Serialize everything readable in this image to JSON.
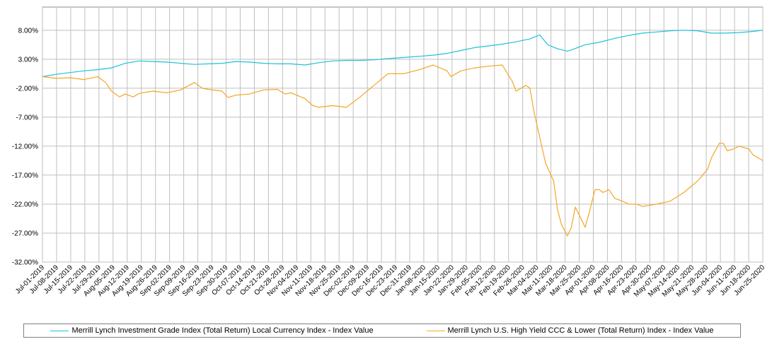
{
  "chart_data": {
    "type": "line",
    "title": "",
    "xlabel": "",
    "ylabel": "",
    "ylim": [
      -32,
      12
    ],
    "yticks": [
      8,
      3,
      -2,
      -7,
      -12,
      -17,
      -22,
      -27,
      -32
    ],
    "ytick_labels": [
      "8.00%",
      "3.00%",
      "-2.00%",
      "-7.00%",
      "-12.00%",
      "-17.00%",
      "-22.00%",
      "-27.00%",
      "-32.00%"
    ],
    "x_start": "2019-07-01",
    "x_end": "2020-06-30",
    "xtick_labels": [
      "Jul-01-2019",
      "Jul-08-2019",
      "Jul-15-2019",
      "Jul-22-2019",
      "Jul-29-2019",
      "Aug-05-2019",
      "Aug-12-2019",
      "Aug-19-2019",
      "Aug-26-2019",
      "Sep-02-2019",
      "Sep-09-2019",
      "Sep-16-2019",
      "Sep-23-2019",
      "Sep-30-2019",
      "Oct-07-2019",
      "Oct-14-2019",
      "Oct-21-2019",
      "Oct-28-2019",
      "Nov-04-2019",
      "Nov-11-2019",
      "Nov-18-2019",
      "Nov-25-2019",
      "Dec-02-2019",
      "Dec-09-2019",
      "Dec-16-2019",
      "Dec-23-2019",
      "Dec-31-2019",
      "Jan-08-2020",
      "Jan-15-2020",
      "Jan-22-2020",
      "Jan-29-2020",
      "Feb-05-2020",
      "Feb-12-2020",
      "Feb-19-2020",
      "Feb-26-2020",
      "Mar-04-2020",
      "Mar-11-2020",
      "Mar-18-2020",
      "Mar-25-2020",
      "Apr-01-2020",
      "Apr-08-2020",
      "Apr-16-2020",
      "Apr-23-2020",
      "Apr-30-2020",
      "May-07-2020",
      "May-14-2020",
      "May-21-2020",
      "May-28-2020",
      "Jun-04-2020",
      "Jun-11-2020",
      "Jun-18-2020",
      "Jun-25-2020"
    ],
    "grid": true,
    "legend_position": "bottom",
    "series": [
      {
        "name": "Merrill Lynch Investment Grade Index (Total Return) Local Currency Index - Index Value",
        "color": "#1fc1d6",
        "x": [
          "2019-07-01",
          "2019-07-08",
          "2019-07-15",
          "2019-07-22",
          "2019-07-29",
          "2019-08-05",
          "2019-08-12",
          "2019-08-19",
          "2019-08-26",
          "2019-09-02",
          "2019-09-09",
          "2019-09-16",
          "2019-09-23",
          "2019-09-30",
          "2019-10-07",
          "2019-10-14",
          "2019-10-21",
          "2019-10-28",
          "2019-11-04",
          "2019-11-11",
          "2019-11-18",
          "2019-11-25",
          "2019-12-02",
          "2019-12-09",
          "2019-12-16",
          "2019-12-23",
          "2019-12-31",
          "2020-01-08",
          "2020-01-15",
          "2020-01-22",
          "2020-01-29",
          "2020-02-05",
          "2020-02-12",
          "2020-02-19",
          "2020-02-26",
          "2020-03-04",
          "2020-03-09",
          "2020-03-13",
          "2020-03-18",
          "2020-03-23",
          "2020-03-25",
          "2020-04-01",
          "2020-04-08",
          "2020-04-16",
          "2020-04-23",
          "2020-04-30",
          "2020-05-07",
          "2020-05-14",
          "2020-05-21",
          "2020-05-28",
          "2020-06-04",
          "2020-06-11",
          "2020-06-18",
          "2020-06-25",
          "2020-06-30"
        ],
        "y": [
          0.0,
          0.4,
          0.7,
          1.0,
          1.2,
          1.5,
          2.3,
          2.7,
          2.6,
          2.5,
          2.3,
          2.1,
          2.2,
          2.3,
          2.6,
          2.5,
          2.3,
          2.2,
          2.2,
          2.0,
          2.4,
          2.7,
          2.8,
          2.8,
          2.9,
          3.1,
          3.3,
          3.5,
          3.7,
          4.0,
          4.5,
          5.0,
          5.3,
          5.6,
          6.0,
          6.5,
          7.2,
          5.5,
          4.8,
          4.4,
          4.6,
          5.5,
          5.9,
          6.6,
          7.1,
          7.5,
          7.7,
          7.9,
          8.0,
          7.9,
          7.5,
          7.5,
          7.6,
          7.8,
          8.0
        ]
      },
      {
        "name": "Merrill Lynch U.S. High Yield CCC & Lower (Total Return) Index - Index Value",
        "color": "#f5a623",
        "x": [
          "2019-07-01",
          "2019-07-08",
          "2019-07-15",
          "2019-07-22",
          "2019-07-29",
          "2019-08-02",
          "2019-08-05",
          "2019-08-09",
          "2019-08-12",
          "2019-08-16",
          "2019-08-19",
          "2019-08-26",
          "2019-09-02",
          "2019-09-09",
          "2019-09-16",
          "2019-09-20",
          "2019-09-23",
          "2019-09-30",
          "2019-10-03",
          "2019-10-07",
          "2019-10-14",
          "2019-10-21",
          "2019-10-28",
          "2019-11-01",
          "2019-11-04",
          "2019-11-11",
          "2019-11-15",
          "2019-11-18",
          "2019-11-25",
          "2019-12-02",
          "2019-12-09",
          "2019-12-16",
          "2019-12-23",
          "2019-12-31",
          "2020-01-08",
          "2020-01-15",
          "2020-01-22",
          "2020-01-24",
          "2020-01-29",
          "2020-02-05",
          "2020-02-12",
          "2020-02-19",
          "2020-02-24",
          "2020-02-26",
          "2020-03-02",
          "2020-03-04",
          "2020-03-06",
          "2020-03-09",
          "2020-03-12",
          "2020-03-16",
          "2020-03-18",
          "2020-03-20",
          "2020-03-23",
          "2020-03-25",
          "2020-03-27",
          "2020-04-01",
          "2020-04-03",
          "2020-04-06",
          "2020-04-08",
          "2020-04-10",
          "2020-04-13",
          "2020-04-16",
          "2020-04-20",
          "2020-04-23",
          "2020-04-27",
          "2020-04-30",
          "2020-05-07",
          "2020-05-14",
          "2020-05-21",
          "2020-05-28",
          "2020-06-02",
          "2020-06-04",
          "2020-06-08",
          "2020-06-10",
          "2020-06-12",
          "2020-06-15",
          "2020-06-18",
          "2020-06-23",
          "2020-06-25",
          "2020-06-30"
        ],
        "y": [
          0.0,
          -0.3,
          -0.2,
          -0.5,
          0.0,
          -1.0,
          -2.5,
          -3.5,
          -3.0,
          -3.5,
          -2.9,
          -2.5,
          -2.8,
          -2.3,
          -1.0,
          -2.0,
          -2.2,
          -2.5,
          -3.6,
          -3.2,
          -3.0,
          -2.3,
          -2.2,
          -3.0,
          -2.8,
          -3.8,
          -5.0,
          -5.3,
          -5.0,
          -5.3,
          -3.5,
          -1.5,
          0.5,
          0.5,
          1.2,
          2.0,
          1.0,
          0.0,
          1.0,
          1.5,
          1.8,
          2.0,
          -0.8,
          -2.5,
          -1.5,
          -2.0,
          -6.0,
          -10.5,
          -15.0,
          -18.0,
          -23.0,
          -25.5,
          -27.5,
          -26.0,
          -22.5,
          -26.0,
          -23.5,
          -19.5,
          -19.5,
          -20.0,
          -19.5,
          -21.0,
          -21.5,
          -22.0,
          -22.0,
          -22.4,
          -22.0,
          -21.5,
          -20.0,
          -18.0,
          -16.0,
          -14.0,
          -11.5,
          -11.5,
          -12.8,
          -12.5,
          -12.0,
          -12.5,
          -13.5,
          -14.5
        ]
      }
    ]
  }
}
